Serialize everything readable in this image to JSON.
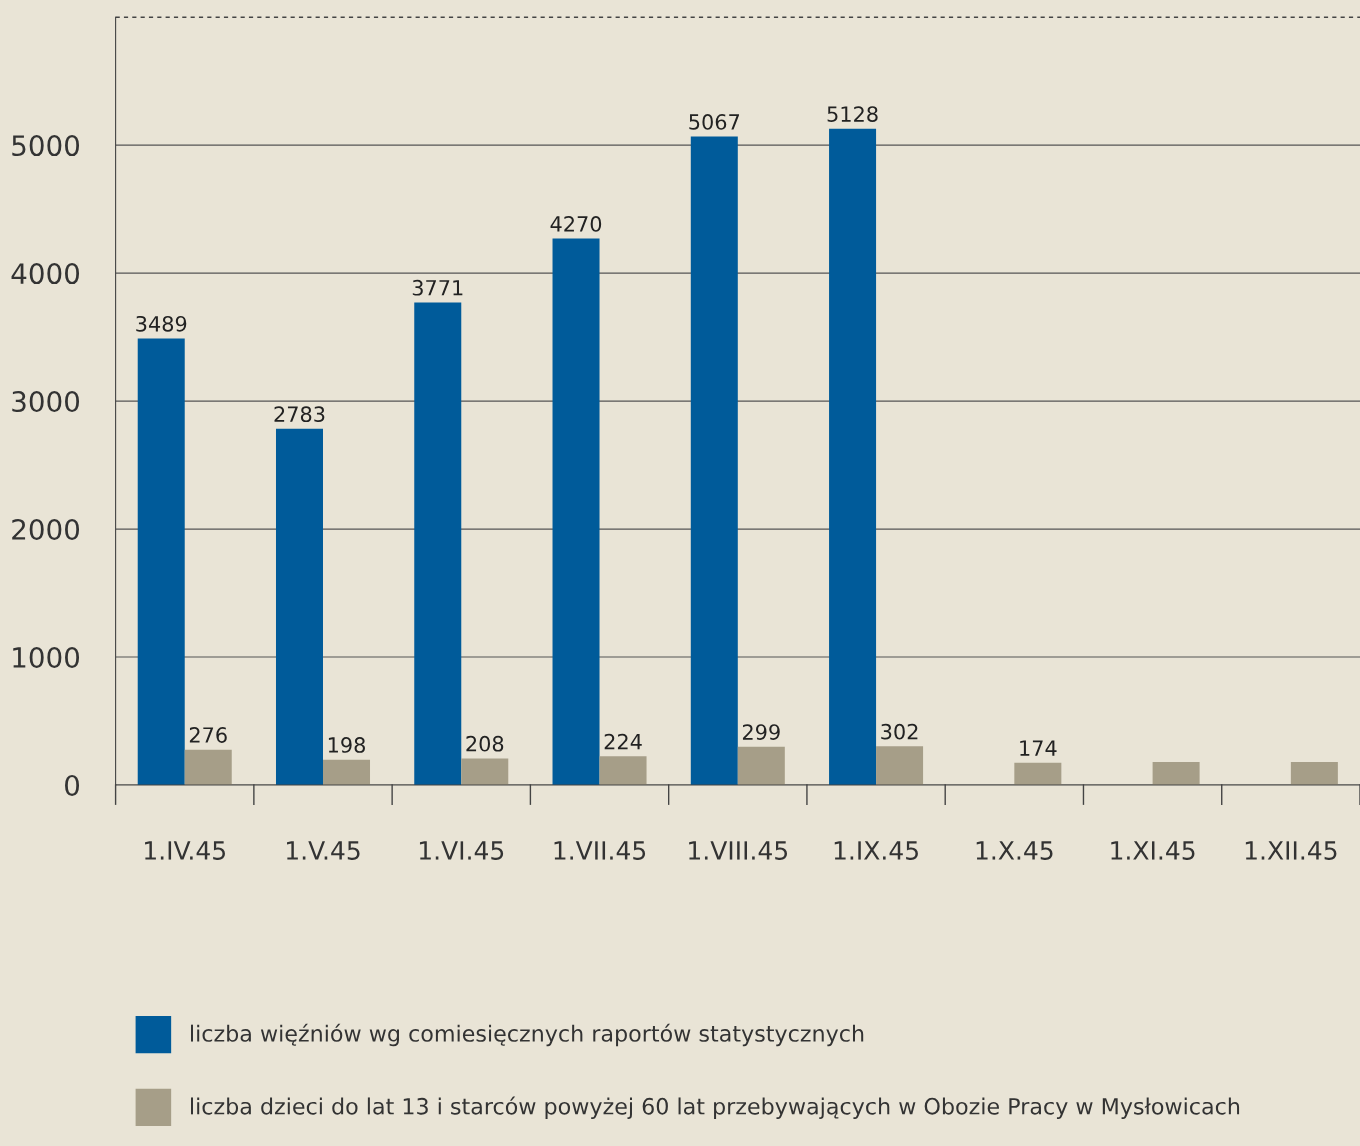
{
  "chart_data": {
    "type": "bar",
    "categories": [
      "1.IV.45",
      "1.V.45",
      "1.VI.45",
      "1.VII.45",
      "1.VIII.45",
      "1.IX.45",
      "1.X.45",
      "1.XI.45",
      "1.XII.45"
    ],
    "series": [
      {
        "name": "liczba więźniów wg comiesięcznych raportów statystycznych",
        "color": "#005b9a",
        "values": [
          3489,
          2783,
          3771,
          4270,
          5067,
          5128,
          null,
          null,
          null
        ]
      },
      {
        "name": "liczba dzieci do lat 13 i starców powyżej 60 lat przebywających w Obozie Pracy w Mysłowicach",
        "color": "#a69e88",
        "values": [
          276,
          198,
          208,
          224,
          299,
          302,
          174,
          180,
          180
        ]
      }
    ],
    "value_labels": [
      [
        "3489",
        "2783",
        "3771",
        "4270",
        "5067",
        "5128",
        null,
        null,
        null
      ],
      [
        "276",
        "198",
        "208",
        "224",
        "299",
        "302",
        "174",
        null,
        null
      ]
    ],
    "ylim": [
      0,
      6000
    ],
    "yticks": [
      0,
      1000,
      2000,
      3000,
      4000,
      5000
    ],
    "ref_lines": [
      {
        "axis": "y",
        "value": 6000,
        "label": null,
        "color": "#444444",
        "line_style": "dashed"
      }
    ],
    "grid": "y",
    "legend": "bottom"
  }
}
